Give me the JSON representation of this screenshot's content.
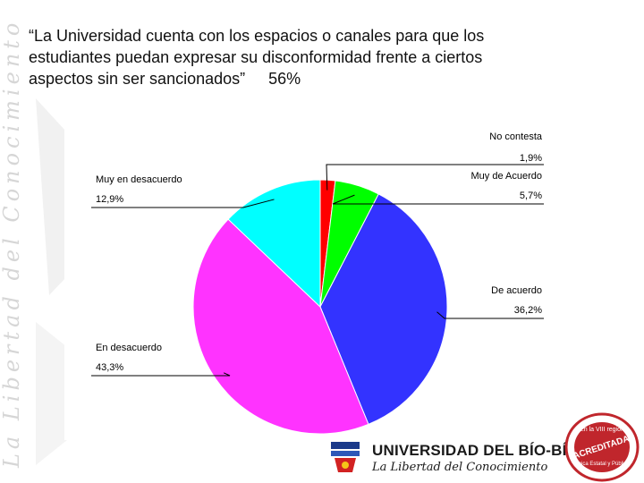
{
  "slide": {
    "title_line1": "“La Universidad cuenta con los espacios o canales para que los",
    "title_line2": "estudiantes puedan expresar su disconformidad frente a ciertos",
    "title_line3": "aspectos sin ser sancionados”",
    "title_percent": "56%",
    "vertical_motto": "La Libertad del Conocimiento"
  },
  "chart_data": {
    "type": "pie",
    "slices": [
      {
        "label": "No contesta",
        "value": 1.9,
        "display": "1,9%",
        "color": "#ff0000"
      },
      {
        "label": "Muy de Acuerdo",
        "value": 5.7,
        "display": "5,7%",
        "color": "#00ff00"
      },
      {
        "label": "De acuerdo",
        "value": 36.2,
        "display": "36,2%",
        "color": "#3333ff"
      },
      {
        "label": "En desacuerdo",
        "value": 43.3,
        "display": "43,3%",
        "color": "#ff33ff"
      },
      {
        "label": "Muy en desacuerdo",
        "value": 12.9,
        "display": "12,9%",
        "color": "#00ffff"
      }
    ],
    "start": "12 o'clock, clockwise",
    "legend": "labels with leader lines"
  },
  "footer": {
    "university_name": "UNIVERSIDAD DEL BÍO-BÍO",
    "motto": "La Libertad del Conocimiento"
  },
  "badge": {
    "line1": "En la VIII región",
    "line2": "ACREDITADA",
    "line3": "Única Estatal y Pública"
  }
}
